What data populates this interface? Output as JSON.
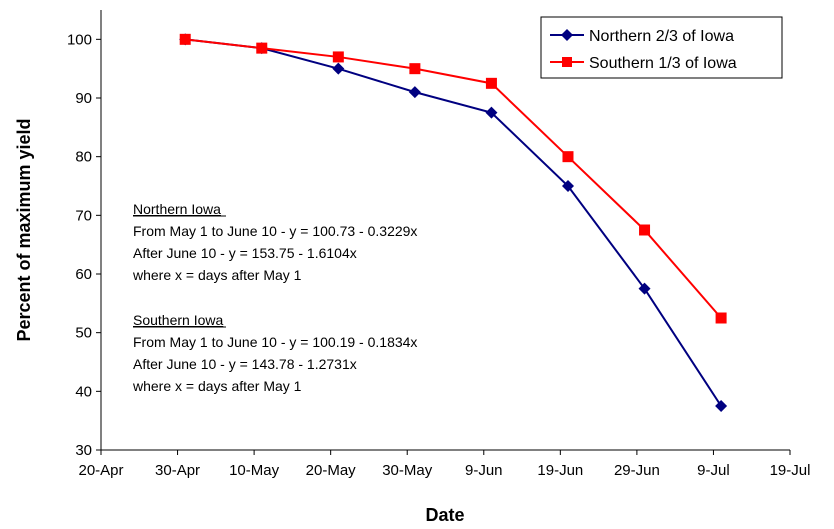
{
  "chart_data": {
    "type": "line",
    "xlabel": "Date",
    "ylabel": "Percent of maximum yield",
    "x_ticks": [
      "20-Apr",
      "30-Apr",
      "10-May",
      "20-May",
      "30-May",
      "9-Jun",
      "19-Jun",
      "29-Jun",
      "9-Jul",
      "19-Jul"
    ],
    "xlim": [
      "20-Apr",
      "19-Jul"
    ],
    "ylim": [
      30,
      105
    ],
    "y_ticks": [
      30,
      40,
      50,
      60,
      70,
      80,
      90,
      100
    ],
    "grid": false,
    "legend_position": "top-right",
    "series": [
      {
        "name": "Northern 2/3 of Iowa",
        "color": "#000080",
        "marker": "diamond",
        "x": [
          "1-May",
          "11-May",
          "21-May",
          "31-May",
          "10-Jun",
          "20-Jun",
          "30-Jun",
          "10-Jul"
        ],
        "values": [
          100,
          98.5,
          95,
          91,
          87.5,
          75,
          57.5,
          37.5
        ]
      },
      {
        "name": "Southern 1/3 of Iowa",
        "color": "#FF0000",
        "marker": "square",
        "x": [
          "1-May",
          "11-May",
          "21-May",
          "31-May",
          "10-Jun",
          "20-Jun",
          "30-Jun",
          "10-Jul"
        ],
        "values": [
          100,
          98.5,
          97,
          95,
          92.5,
          80,
          67.5,
          52.5
        ]
      }
    ],
    "annotations": {
      "northern": {
        "heading": "Northern Iowa",
        "lines": [
          "From May 1 to June 10 - y = 100.73 - 0.3229x",
          "After June 10 - y = 153.75 - 1.6104x",
          "where x = days after May 1"
        ]
      },
      "southern": {
        "heading": "Southern Iowa",
        "lines": [
          "From May 1 to June 10 - y = 100.19 - 0.1834x",
          "After June 10 - y = 143.78 - 1.2731x",
          "where x = days after May 1"
        ]
      }
    }
  }
}
